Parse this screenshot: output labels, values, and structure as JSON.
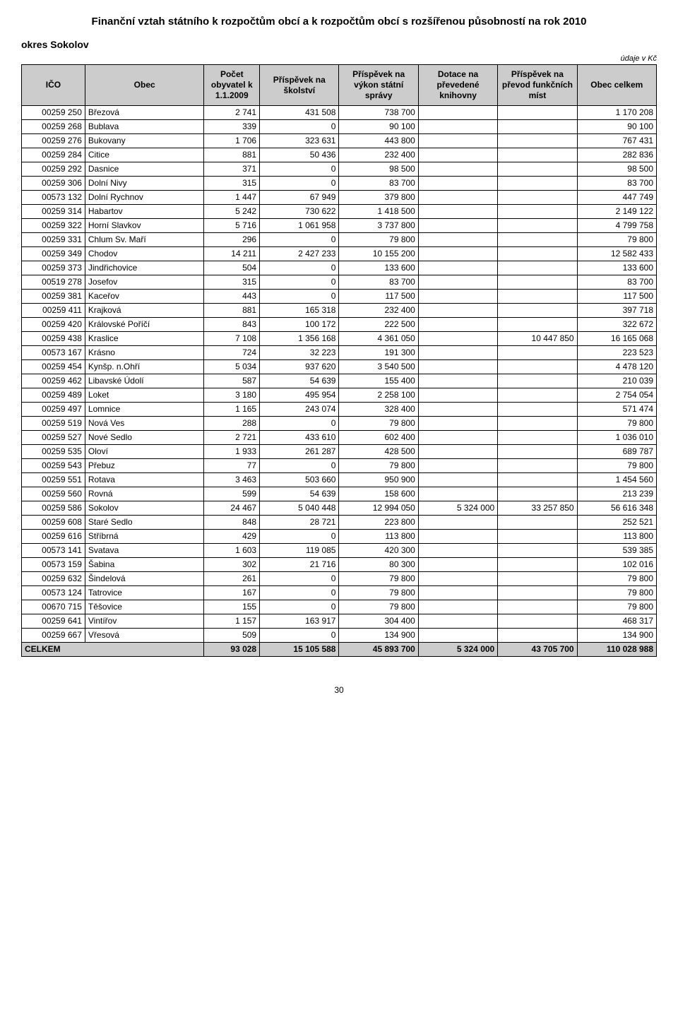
{
  "title": "Finanční vztah státního k rozpočtům obcí a k rozpočtům obcí s rozšířenou působností na rok 2010",
  "district": "okres Sokolov",
  "units_note": "údaje v Kč",
  "page_number": "30",
  "columns": [
    "IČO",
    "Obec",
    "Počet obyvatel k 1.1.2009",
    "Příspěvek na školství",
    "Příspěvek na výkon státní správy",
    "Dotace na převedené knihovny",
    "Příspěvek na převod funkčních míst",
    "Obec celkem"
  ],
  "col_widths": [
    "80px",
    "150px",
    "70px",
    "100px",
    "100px",
    "100px",
    "100px",
    "100px"
  ],
  "rows": [
    [
      "00259 250",
      "Březová",
      "2 741",
      "431 508",
      "738 700",
      "",
      "",
      "1 170 208"
    ],
    [
      "00259 268",
      "Bublava",
      "339",
      "0",
      "90 100",
      "",
      "",
      "90 100"
    ],
    [
      "00259 276",
      "Bukovany",
      "1 706",
      "323 631",
      "443 800",
      "",
      "",
      "767 431"
    ],
    [
      "00259 284",
      "Citice",
      "881",
      "50 436",
      "232 400",
      "",
      "",
      "282 836"
    ],
    [
      "00259 292",
      "Dasnice",
      "371",
      "0",
      "98 500",
      "",
      "",
      "98 500"
    ],
    [
      "00259 306",
      "Dolní Nivy",
      "315",
      "0",
      "83 700",
      "",
      "",
      "83 700"
    ],
    [
      "00573 132",
      "Dolní Rychnov",
      "1 447",
      "67 949",
      "379 800",
      "",
      "",
      "447 749"
    ],
    [
      "00259 314",
      "Habartov",
      "5 242",
      "730 622",
      "1 418 500",
      "",
      "",
      "2 149 122"
    ],
    [
      "00259 322",
      "Horní Slavkov",
      "5 716",
      "1 061 958",
      "3 737 800",
      "",
      "",
      "4 799 758"
    ],
    [
      "00259 331",
      "Chlum Sv. Maří",
      "296",
      "0",
      "79 800",
      "",
      "",
      "79 800"
    ],
    [
      "00259 349",
      "Chodov",
      "14 211",
      "2 427 233",
      "10 155 200",
      "",
      "",
      "12 582 433"
    ],
    [
      "00259 373",
      "Jindřichovice",
      "504",
      "0",
      "133 600",
      "",
      "",
      "133 600"
    ],
    [
      "00519 278",
      "Josefov",
      "315",
      "0",
      "83 700",
      "",
      "",
      "83 700"
    ],
    [
      "00259 381",
      "Kaceřov",
      "443",
      "0",
      "117 500",
      "",
      "",
      "117 500"
    ],
    [
      "00259 411",
      "Krajková",
      "881",
      "165 318",
      "232 400",
      "",
      "",
      "397 718"
    ],
    [
      "00259 420",
      "Královské Poříčí",
      "843",
      "100 172",
      "222 500",
      "",
      "",
      "322 672"
    ],
    [
      "00259 438",
      "Kraslice",
      "7 108",
      "1 356 168",
      "4 361 050",
      "",
      "10 447 850",
      "16 165 068"
    ],
    [
      "00573 167",
      "Krásno",
      "724",
      "32 223",
      "191 300",
      "",
      "",
      "223 523"
    ],
    [
      "00259 454",
      "Kynšp. n.Ohří",
      "5 034",
      "937 620",
      "3 540 500",
      "",
      "",
      "4 478 120"
    ],
    [
      "00259 462",
      "Libavské Údolí",
      "587",
      "54 639",
      "155 400",
      "",
      "",
      "210 039"
    ],
    [
      "00259 489",
      "Loket",
      "3 180",
      "495 954",
      "2 258 100",
      "",
      "",
      "2 754 054"
    ],
    [
      "00259 497",
      "Lomnice",
      "1 165",
      "243 074",
      "328 400",
      "",
      "",
      "571 474"
    ],
    [
      "00259 519",
      "Nová Ves",
      "288",
      "0",
      "79 800",
      "",
      "",
      "79 800"
    ],
    [
      "00259 527",
      "Nové Sedlo",
      "2 721",
      "433 610",
      "602 400",
      "",
      "",
      "1 036 010"
    ],
    [
      "00259 535",
      "Oloví",
      "1 933",
      "261 287",
      "428 500",
      "",
      "",
      "689 787"
    ],
    [
      "00259 543",
      "Přebuz",
      "77",
      "0",
      "79 800",
      "",
      "",
      "79 800"
    ],
    [
      "00259 551",
      "Rotava",
      "3 463",
      "503 660",
      "950 900",
      "",
      "",
      "1 454 560"
    ],
    [
      "00259 560",
      "Rovná",
      "599",
      "54 639",
      "158 600",
      "",
      "",
      "213 239"
    ],
    [
      "00259 586",
      "Sokolov",
      "24 467",
      "5 040 448",
      "12 994 050",
      "5 324 000",
      "33 257 850",
      "56 616 348"
    ],
    [
      "00259 608",
      "Staré Sedlo",
      "848",
      "28 721",
      "223 800",
      "",
      "",
      "252 521"
    ],
    [
      "00259 616",
      "Stříbrná",
      "429",
      "0",
      "113 800",
      "",
      "",
      "113 800"
    ],
    [
      "00573 141",
      "Svatava",
      "1 603",
      "119 085",
      "420 300",
      "",
      "",
      "539 385"
    ],
    [
      "00573 159",
      "Šabina",
      "302",
      "21 716",
      "80 300",
      "",
      "",
      "102 016"
    ],
    [
      "00259 632",
      "Šindelová",
      "261",
      "0",
      "79 800",
      "",
      "",
      "79 800"
    ],
    [
      "00573 124",
      "Tatrovice",
      "167",
      "0",
      "79 800",
      "",
      "",
      "79 800"
    ],
    [
      "00670 715",
      "Těšovice",
      "155",
      "0",
      "79 800",
      "",
      "",
      "79 800"
    ],
    [
      "00259 641",
      "Vintířov",
      "1 157",
      "163 917",
      "304 400",
      "",
      "",
      "468 317"
    ],
    [
      "00259 667",
      "Vřesová",
      "509",
      "0",
      "134 900",
      "",
      "",
      "134 900"
    ]
  ],
  "total_label": "CELKEM",
  "total_row": [
    "93 028",
    "15 105 588",
    "45 893 700",
    "5 324 000",
    "43 705 700",
    "110 028 988"
  ]
}
